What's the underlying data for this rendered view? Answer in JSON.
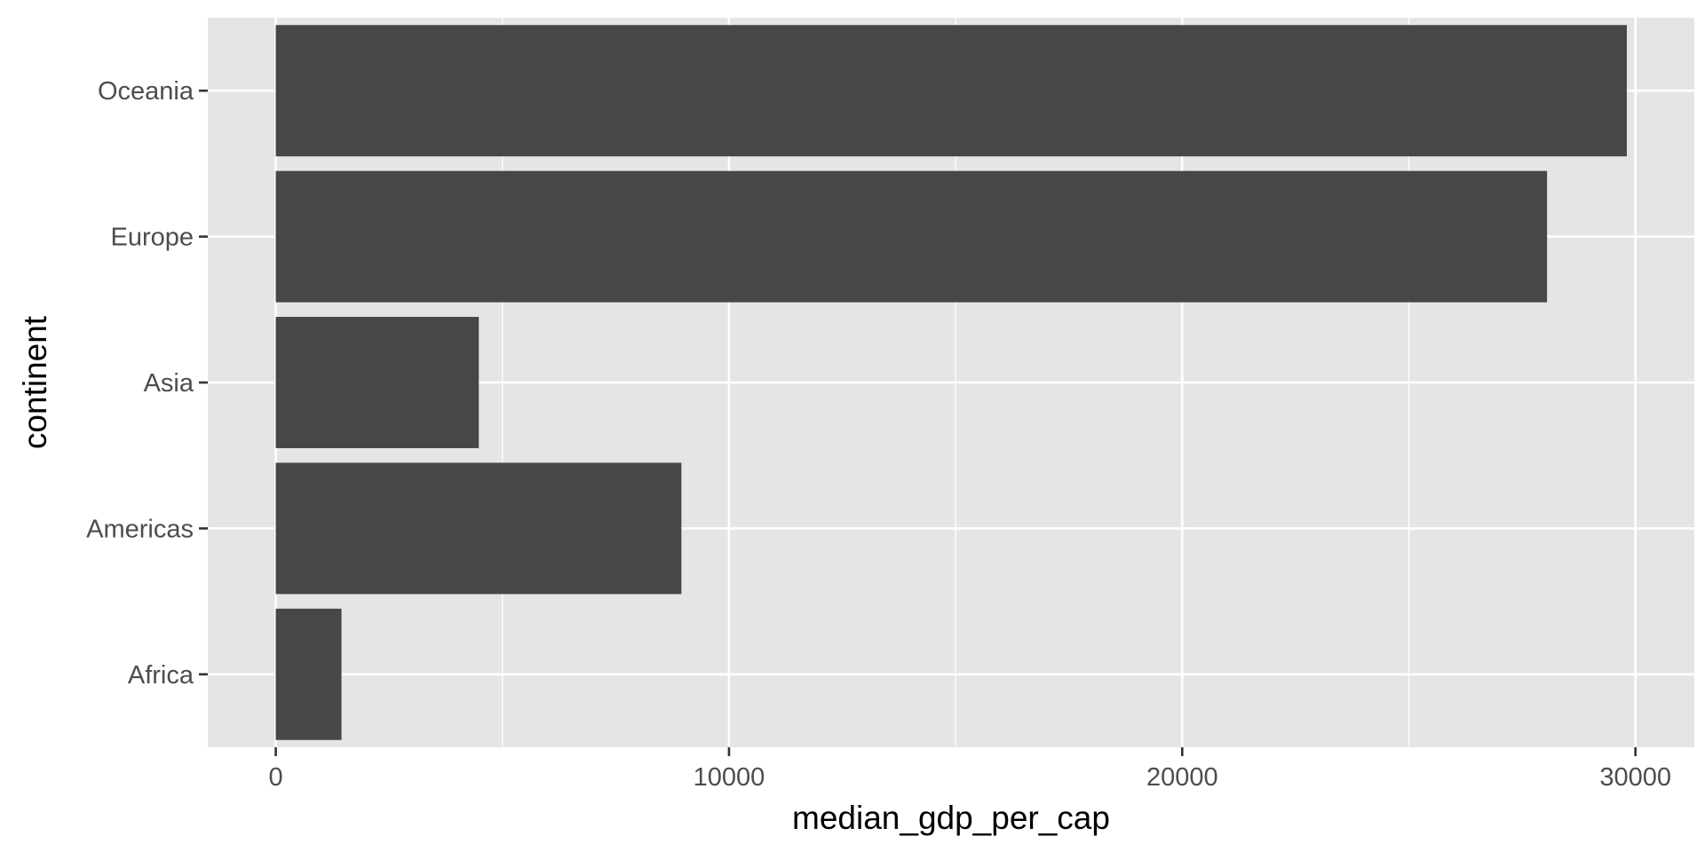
{
  "chart_data": {
    "type": "bar",
    "orientation": "horizontal",
    "categories": [
      "Africa",
      "Americas",
      "Asia",
      "Europe",
      "Oceania"
    ],
    "values": [
      1450,
      8950,
      4480,
      28050,
      29810
    ],
    "xlabel": "median_gdp_per_cap",
    "ylabel": "continent",
    "xlim": [
      -1500,
      31300
    ],
    "xticks": [
      0,
      10000,
      20000,
      30000
    ],
    "xtick_labels": [
      "0",
      "10000",
      "20000",
      "30000"
    ],
    "grid": true,
    "legend": "none",
    "colors": {
      "bar": "#474747",
      "panel": "#e5e5e5",
      "grid": "#ffffff",
      "tick": "#333333"
    }
  }
}
